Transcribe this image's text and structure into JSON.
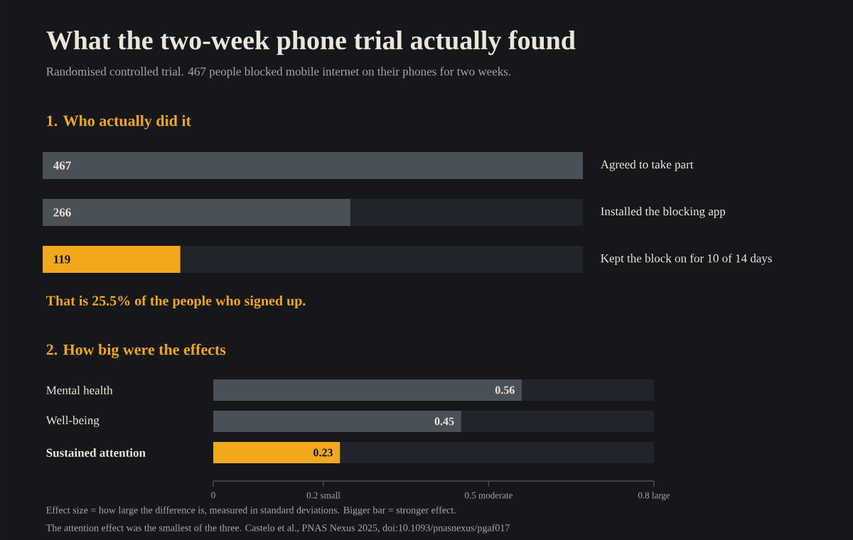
{
  "chart_data": [
    {
      "type": "bar",
      "orientation": "horizontal",
      "title": "What the two-week phone trial actually found",
      "subtitle": "Randomised controlled trial. 467 people blocked mobile internet on their phones for two weeks.",
      "categories": [
        "Agreed to take part",
        "Installed the blocking app",
        "Kept the block on for 10 of 14 days"
      ],
      "values": [
        467,
        266,
        119
      ],
      "colors": [
        "#4a5058",
        "#4a5058",
        "#f2a81d"
      ],
      "data_labels": true,
      "annotations": [
        "1. Who actually did it",
        "That is 25.5% of the people who signed up."
      ]
    },
    {
      "type": "bar",
      "orientation": "horizontal",
      "title": "2. How big were the effects",
      "categories": [
        "Mental health",
        "Well-being",
        "Sustained attention"
      ],
      "values": [
        0.56,
        0.45,
        0.23
      ],
      "colors": [
        "#4a5058",
        "#4a5058",
        "#f2a81d"
      ],
      "data_labels": true,
      "xlim": [
        0,
        0.8
      ],
      "xticks": [
        0,
        {
          "value": 0.2,
          "label": "0.2 small"
        },
        {
          "value": 0.5,
          "label": "0.5 moderate"
        },
        {
          "value": 0.8,
          "label": "0.8 large"
        }
      ],
      "annotations": [
        "Effect size = how large the difference is, measured in standard deviations. Bigger bar = stronger effect.",
        "The attention effect was the smallest of the three. Castelo et al., PNAS Nexus 2025, doi:10.1093/pnasnexus/pgaf017"
      ]
    }
  ]
}
